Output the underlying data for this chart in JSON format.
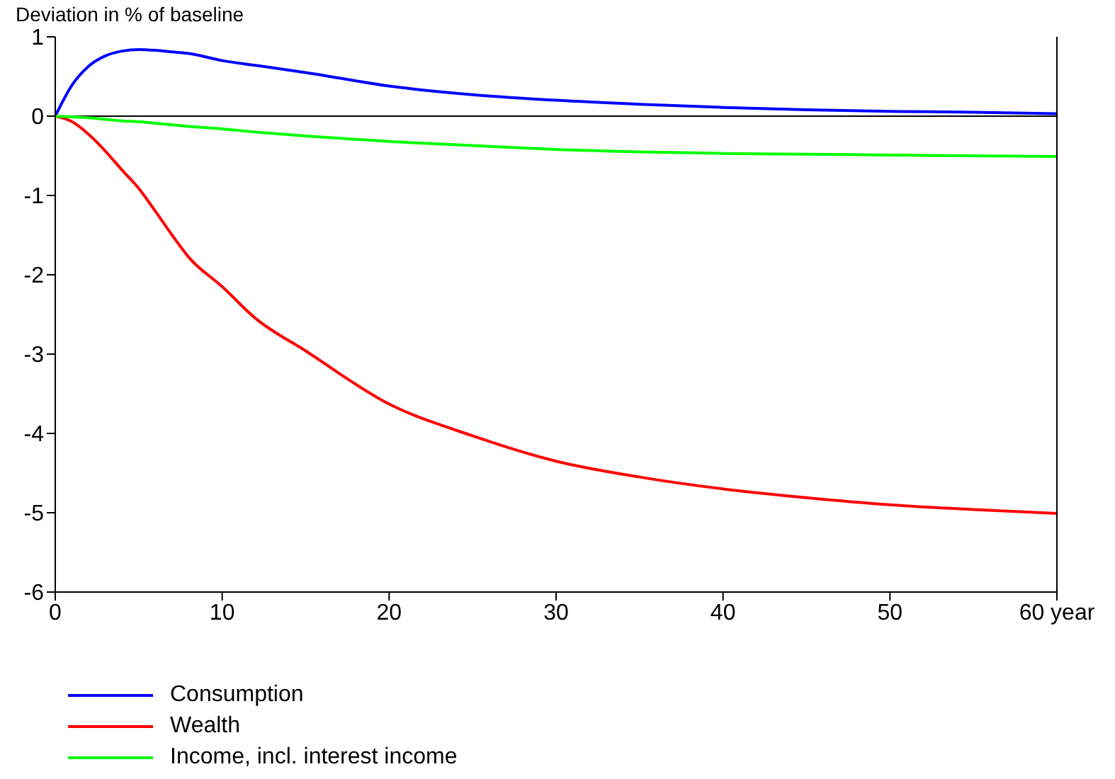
{
  "chart_data": {
    "type": "line",
    "ylabel": "Deviation in % of baseline",
    "x": [
      0,
      1,
      2,
      3,
      4,
      5,
      6,
      7,
      8,
      10,
      12,
      15,
      20,
      25,
      30,
      35,
      40,
      45,
      50,
      55,
      60
    ],
    "series": [
      {
        "name": "Consumption",
        "color": "#0000ff",
        "values": [
          0,
          0.39,
          0.63,
          0.76,
          0.82,
          0.84,
          0.83,
          0.81,
          0.79,
          0.7,
          0.64,
          0.55,
          0.38,
          0.27,
          0.2,
          0.15,
          0.11,
          0.08,
          0.06,
          0.05,
          0.03
        ]
      },
      {
        "name": "Wealth",
        "color": "#ff0000",
        "values": [
          0,
          -0.07,
          -0.23,
          -0.44,
          -0.68,
          -0.91,
          -1.2,
          -1.5,
          -1.78,
          -2.15,
          -2.55,
          -2.96,
          -3.63,
          -4.03,
          -4.35,
          -4.55,
          -4.7,
          -4.81,
          -4.9,
          -4.96,
          -5.01
        ]
      },
      {
        "name": "Income, incl. interest income",
        "color": "#00ff00",
        "values": [
          0,
          -0.01,
          -0.02,
          -0.04,
          -0.06,
          -0.07,
          -0.09,
          -0.11,
          -0.13,
          -0.16,
          -0.2,
          -0.25,
          -0.32,
          -0.37,
          -0.42,
          -0.45,
          -0.47,
          -0.48,
          -0.49,
          -0.5,
          -0.51
        ]
      }
    ],
    "xlim": [
      0,
      60
    ],
    "xticks": [
      0,
      10,
      20,
      30,
      40,
      50,
      {
        "value": 60,
        "label": "60 year"
      }
    ],
    "ylim": [
      -6,
      1
    ],
    "yticks": [
      -6,
      -5,
      -4,
      -3,
      -2,
      -1,
      0,
      1
    ],
    "ref_lines": [
      {
        "axis": "y",
        "value": 0,
        "color": "#000000"
      }
    ],
    "grid": false,
    "legend": "bottom",
    "marker": "none",
    "line_style": "solid"
  }
}
